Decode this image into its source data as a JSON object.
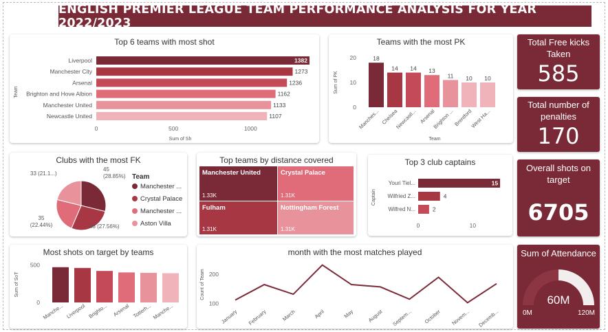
{
  "title": "ENGLISH PREMIER LEAGUE TEAM PERFORMANCE ANALYSIS FOR YEAR 2022/2023",
  "kpis": {
    "free_kicks": {
      "label": "Total Free kicks Taken",
      "value": "585"
    },
    "penalties": {
      "label": "Total number of penalties",
      "value": "170"
    },
    "shots_on_target": {
      "label": "Overall shots on target",
      "value": "6705"
    },
    "attendance": {
      "label": "Sum of Attendance",
      "value": "60M",
      "min": "0M",
      "max": "120M",
      "fraction": 0.5
    }
  },
  "colors": {
    "dark": "#7a2a36",
    "mid": "#a83744",
    "c3": "#c44a57",
    "c4": "#e06c79",
    "c5": "#e8929b",
    "c6": "#f0b3b9"
  },
  "chart_data": [
    {
      "id": "top-shots",
      "type": "bar",
      "orientation": "horizontal",
      "title": "Top 6 teams with most shot",
      "categories": [
        "Liverpool",
        "Manchester City",
        "Arsenal",
        "Brighton and Hove Albion",
        "Manchester United",
        "Newcastle United"
      ],
      "values": [
        1382,
        1273,
        1236,
        1162,
        1133,
        1107
      ],
      "xlabel": "Sum of Sh",
      "ylabel": "Team",
      "ticks": [
        0,
        500,
        1000
      ],
      "xlim": [
        0,
        1400
      ]
    },
    {
      "id": "most-pk",
      "type": "bar",
      "title": "Teams with the most PK",
      "categories": [
        "Manches...",
        "Chelsea",
        "Newcastl...",
        "Arsenal",
        "Brighton ...",
        "Brentford",
        "West Ha..."
      ],
      "values": [
        18,
        14,
        14,
        13,
        11,
        10,
        10
      ],
      "xlabel": "Team",
      "ylabel": "Sum of PK",
      "ticks": [
        0,
        10,
        20
      ],
      "ylim": [
        0,
        20
      ]
    },
    {
      "id": "most-fk",
      "type": "pie",
      "title": "Clubs with the most FK",
      "legend_title": "Team",
      "slices": [
        {
          "name": "Manchester ...",
          "value": 45,
          "label": "45 (28.85%)"
        },
        {
          "name": "Crystal Palace",
          "value": 43,
          "label": "43 (27.56%)"
        },
        {
          "name": "Manchester ...",
          "value": 35,
          "label": "35 (22.44%)"
        },
        {
          "name": "Aston Villa",
          "value": 33,
          "label": "33 (21.1...)"
        }
      ]
    },
    {
      "id": "distance",
      "type": "table",
      "title": "Top teams by distance covered",
      "tiles": [
        {
          "name": "Manchester United",
          "value": "1.33K"
        },
        {
          "name": "Crystal Palace",
          "value": "1.31K"
        },
        {
          "name": "Fulham",
          "value": "1.31K"
        },
        {
          "name": "Nottingham Forest",
          "value": "1.31K"
        }
      ]
    },
    {
      "id": "captains",
      "type": "bar",
      "orientation": "horizontal",
      "title": "Top 3 club captains",
      "categories": [
        "Youri Tiel...",
        "Wilfried Z...",
        "Wilfred N..."
      ],
      "values": [
        15,
        4,
        2
      ],
      "ylabel": "Captain",
      "ticks": [
        0,
        10
      ],
      "xlim": [
        0,
        16
      ]
    },
    {
      "id": "sot",
      "type": "bar",
      "title": "Most shots on target by teams",
      "categories": [
        "Manche...",
        "Liverpool",
        "Brighto...",
        "Arsenal",
        "Totterh...",
        "Manche..."
      ],
      "values": [
        470,
        460,
        420,
        400,
        395,
        390
      ],
      "ylabel": "Sum of SoT",
      "ticks": [
        0,
        500
      ],
      "ylim": [
        0,
        550
      ]
    },
    {
      "id": "months",
      "type": "line",
      "title": "month with the most matches played",
      "categories": [
        "January",
        "February",
        "March",
        "April",
        "May",
        "August",
        "Septem...",
        "October",
        "Novem...",
        "Decemb..."
      ],
      "values": [
        112,
        165,
        132,
        232,
        165,
        157,
        115,
        190,
        103,
        168
      ],
      "ylabel": "Count of Team",
      "ticks": [
        100,
        200
      ],
      "ylim": [
        85,
        245
      ]
    }
  ]
}
